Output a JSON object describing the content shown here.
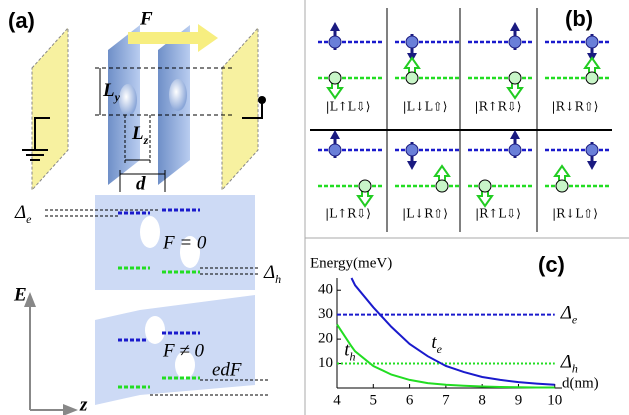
{
  "panel_a": {
    "label": "(a)",
    "force": "F",
    "ly": {
      "main": "L",
      "sub": "y"
    },
    "lz": {
      "main": "L",
      "sub": "z"
    },
    "d": "d",
    "delta_e": {
      "main": "Δ",
      "sub": "e"
    },
    "f_zero": "F = 0",
    "delta_h": {
      "main": "Δ",
      "sub": "h"
    },
    "energy_axis": "E",
    "f_nonzero": "F ≠ 0",
    "edf": "edF",
    "z_axis": "z"
  },
  "panel_b": {
    "label": "(b)",
    "states": [
      "|L↑L⇩⟩",
      "|L↓L⇧⟩",
      "|R↑R⇩⟩",
      "|R↓R⇧⟩",
      "|L↑R⇩⟩",
      "|L↓R⇧⟩",
      "|R↑L⇩⟩",
      "|R↓L⇧⟩"
    ]
  },
  "chart_data": {
    "type": "line",
    "label": "(c)",
    "ylabel": "Energy(meV)",
    "xlabel": "d(nm)",
    "x": [
      4,
      4.4,
      4.5,
      5,
      5.5,
      6,
      6.5,
      7,
      7.5,
      8,
      8.5,
      9,
      9.5,
      10
    ],
    "series": [
      {
        "name": "t",
        "name_sub": "e",
        "color": "#1a1acc",
        "values": [
          null,
          45,
          42,
          33,
          25,
          18,
          13,
          9,
          6.5,
          4.5,
          3.3,
          2.4,
          1.8,
          1.3
        ]
      },
      {
        "name": "t",
        "name_sub": "h",
        "color": "#22dd22",
        "values": [
          26,
          17,
          15,
          9,
          5.5,
          3.3,
          2,
          1.3,
          0.9,
          0.6,
          0.4,
          0.3,
          0.2,
          0.2
        ]
      }
    ],
    "reference_lines": [
      {
        "label": "Δ",
        "sub": "e",
        "value": 30,
        "color": "#1a1acc"
      },
      {
        "label": "Δ",
        "sub": "h",
        "value": 10,
        "color": "#22dd22"
      }
    ],
    "xlim": [
      4,
      10.2
    ],
    "ylim": [
      0,
      45
    ],
    "xticks": [
      4,
      5,
      6,
      7,
      8,
      9,
      10
    ],
    "yticks": [
      10,
      20,
      30,
      40
    ]
  }
}
